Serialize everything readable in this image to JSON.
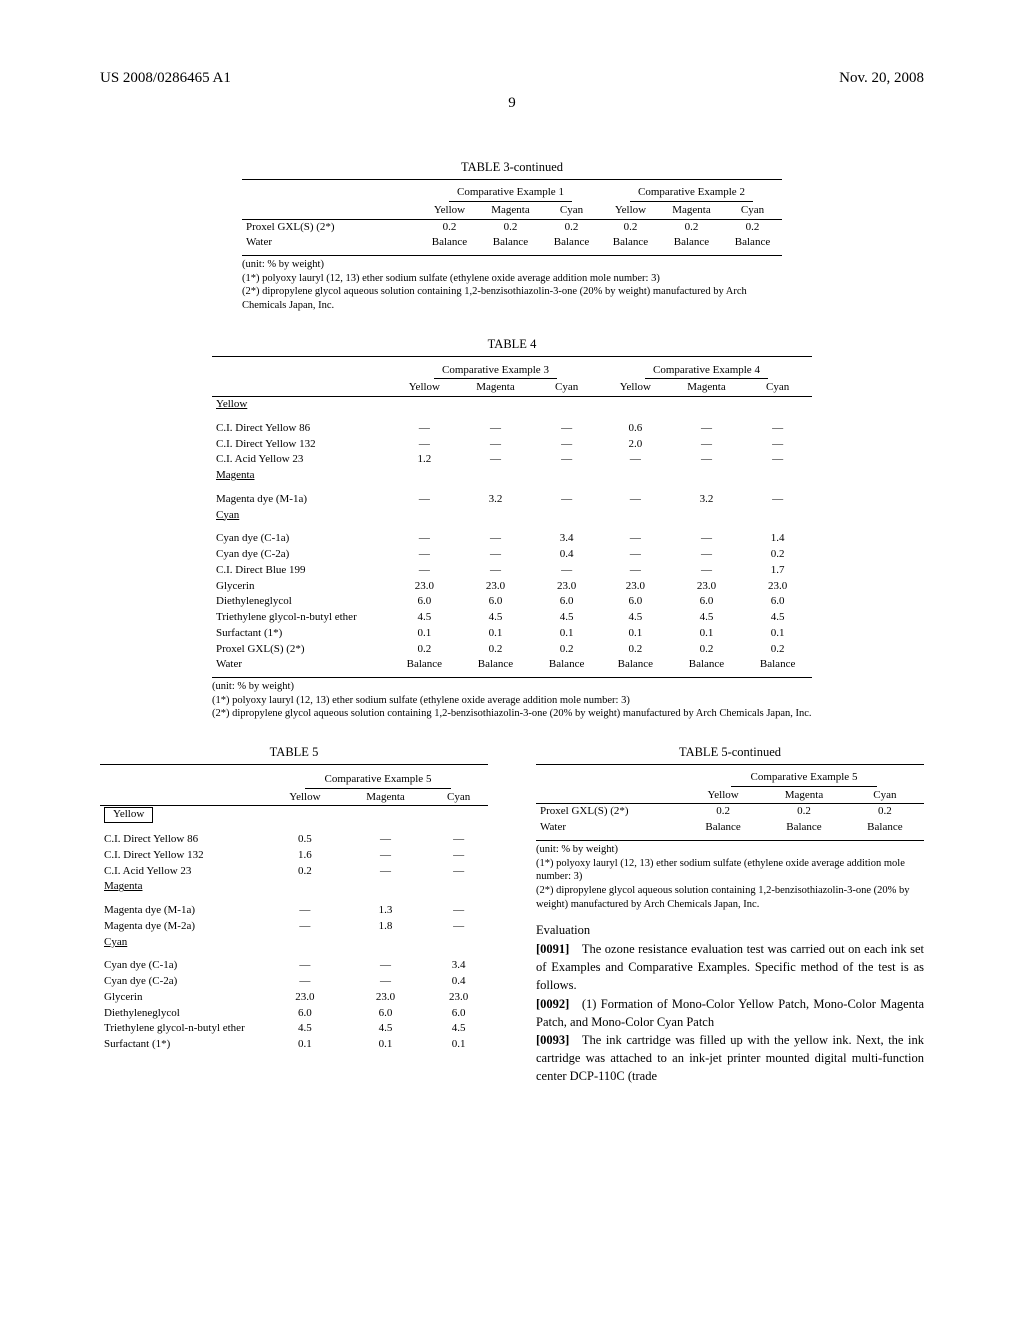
{
  "header": {
    "left": "US 2008/0286465 A1",
    "right": "Nov. 20, 2008",
    "page_number": "9"
  },
  "table3": {
    "title": "TABLE 3-continued",
    "group_headers": [
      "Comparative Example 1",
      "Comparative Example 2"
    ],
    "sub_headers": [
      "Yellow",
      "Magenta",
      "Cyan",
      "Yellow",
      "Magenta",
      "Cyan"
    ],
    "rows": [
      {
        "label": "Proxel GXL(S) (2*)",
        "vals": [
          "0.2",
          "0.2",
          "0.2",
          "0.2",
          "0.2",
          "0.2"
        ]
      },
      {
        "label": "Water",
        "vals": [
          "Balance",
          "Balance",
          "Balance",
          "Balance",
          "Balance",
          "Balance"
        ]
      }
    ],
    "footnotes": [
      "(unit: % by weight)",
      "(1*) polyoxy lauryl (12, 13) ether sodium sulfate (ethylene oxide average addition mole number: 3)",
      "(2*) dipropylene glycol aqueous solution containing 1,2-benzisothiazolin-3-one (20% by weight) manufactured by Arch Chemicals Japan, Inc."
    ],
    "label_col_width": "170px"
  },
  "table4": {
    "title": "TABLE 4",
    "group_headers": [
      "Comparative Example 3",
      "Comparative Example 4"
    ],
    "sub_headers": [
      "Yellow",
      "Magenta",
      "Cyan",
      "Yellow",
      "Magenta",
      "Cyan"
    ],
    "sections": [
      {
        "name": "Yellow",
        "rows": [
          {
            "label": "C.I. Direct Yellow 86",
            "vals": [
              "—",
              "—",
              "—",
              "0.6",
              "—",
              "—"
            ]
          },
          {
            "label": "C.I. Direct Yellow 132",
            "vals": [
              "—",
              "—",
              "—",
              "2.0",
              "—",
              "—"
            ]
          },
          {
            "label": "C.I. Acid Yellow 23",
            "vals": [
              "1.2",
              "—",
              "—",
              "—",
              "—",
              "—"
            ]
          }
        ]
      },
      {
        "name": "Magenta",
        "rows": [
          {
            "label": "Magenta dye (M-1a)",
            "vals": [
              "—",
              "3.2",
              "—",
              "—",
              "3.2",
              "—"
            ]
          }
        ]
      },
      {
        "name": "Cyan",
        "rows": [
          {
            "label": "Cyan dye (C-1a)",
            "vals": [
              "—",
              "—",
              "3.4",
              "—",
              "—",
              "1.4"
            ]
          },
          {
            "label": "Cyan dye (C-2a)",
            "vals": [
              "—",
              "—",
              "0.4",
              "—",
              "—",
              "0.2"
            ]
          },
          {
            "label": "C.I. Direct Blue 199",
            "vals": [
              "—",
              "—",
              "—",
              "—",
              "—",
              "1.7"
            ]
          },
          {
            "label": "Glycerin",
            "vals": [
              "23.0",
              "23.0",
              "23.0",
              "23.0",
              "23.0",
              "23.0"
            ]
          },
          {
            "label": "Diethyleneglycol",
            "vals": [
              "6.0",
              "6.0",
              "6.0",
              "6.0",
              "6.0",
              "6.0"
            ]
          },
          {
            "label": "Triethylene glycol-n-butyl ether",
            "vals": [
              "4.5",
              "4.5",
              "4.5",
              "4.5",
              "4.5",
              "4.5"
            ]
          },
          {
            "label": "Surfactant (1*)",
            "vals": [
              "0.1",
              "0.1",
              "0.1",
              "0.1",
              "0.1",
              "0.1"
            ]
          },
          {
            "label": "Proxel GXL(S) (2*)",
            "vals": [
              "0.2",
              "0.2",
              "0.2",
              "0.2",
              "0.2",
              "0.2"
            ]
          },
          {
            "label": "Water",
            "vals": [
              "Balance",
              "Balance",
              "Balance",
              "Balance",
              "Balance",
              "Balance"
            ]
          }
        ]
      }
    ],
    "footnotes": [
      "(unit: % by weight)",
      "(1*) polyoxy lauryl (12, 13) ether sodium sulfate (ethylene oxide average addition mole number: 3)",
      "(2*) dipropylene glycol aqueous solution containing 1,2-benzisothiazolin-3-one (20% by weight) manufactured by Arch Chemicals Japan, Inc."
    ],
    "label_col_width": "170px"
  },
  "table5_left": {
    "title": "TABLE 5",
    "group_header": "Comparative Example 5",
    "sub_headers": [
      "Yellow",
      "Magenta",
      "Cyan"
    ],
    "sections": [
      {
        "name": "Yellow",
        "boxed": true,
        "rows": [
          {
            "label": "C.I. Direct Yellow 86",
            "vals": [
              "0.5",
              "—",
              "—"
            ]
          },
          {
            "label": "C.I. Direct Yellow 132",
            "vals": [
              "1.6",
              "—",
              "—"
            ]
          },
          {
            "label": "C.I. Acid Yellow 23",
            "vals": [
              "0.2",
              "—",
              "—"
            ]
          }
        ]
      },
      {
        "name": "Magenta",
        "rows": [
          {
            "label": "Magenta dye (M-1a)",
            "vals": [
              "—",
              "1.3",
              "—"
            ]
          },
          {
            "label": "Magenta dye (M-2a)",
            "vals": [
              "—",
              "1.8",
              "—"
            ]
          }
        ]
      },
      {
        "name": "Cyan",
        "rows": [
          {
            "label": "Cyan dye (C-1a)",
            "vals": [
              "—",
              "—",
              "3.4"
            ]
          },
          {
            "label": "Cyan dye (C-2a)",
            "vals": [
              "—",
              "—",
              "0.4"
            ]
          },
          {
            "label": "Glycerin",
            "vals": [
              "23.0",
              "23.0",
              "23.0"
            ]
          },
          {
            "label": "Diethyleneglycol",
            "vals": [
              "6.0",
              "6.0",
              "6.0"
            ]
          },
          {
            "label": "Triethylene glycol-n-butyl ether",
            "vals": [
              "4.5",
              "4.5",
              "4.5"
            ]
          },
          {
            "label": "Surfactant (1*)",
            "vals": [
              "0.1",
              "0.1",
              "0.1"
            ]
          }
        ]
      }
    ],
    "label_col_width": "160px"
  },
  "table5_right": {
    "title": "TABLE 5-continued",
    "group_header": "Comparative Example 5",
    "sub_headers": [
      "Yellow",
      "Magenta",
      "Cyan"
    ],
    "rows": [
      {
        "label": "Proxel GXL(S) (2*)",
        "vals": [
          "0.2",
          "0.2",
          "0.2"
        ]
      },
      {
        "label": "Water",
        "vals": [
          "Balance",
          "Balance",
          "Balance"
        ]
      }
    ],
    "footnotes": [
      "(unit: % by weight)",
      "(1*) polyoxy lauryl (12, 13) ether sodium sulfate (ethylene oxide average addition mole number: 3)",
      "(2*) dipropylene glycol aqueous solution containing 1,2-benzisothiazolin-3-one (20% by weight) manufactured by Arch Chemicals Japan, Inc."
    ],
    "label_col_width": "140px"
  },
  "evaluation_heading": "Evaluation",
  "paragraphs": [
    {
      "num": "[0091]",
      "text": "The ozone resistance evaluation test was carried out on each ink set of Examples and Comparative Examples. Specific method of the test is as follows."
    },
    {
      "num": "[0092]",
      "text": "(1) Formation of Mono-Color Yellow Patch, Mono-Color Magenta Patch, and Mono-Color Cyan Patch"
    },
    {
      "num": "[0093]",
      "text": "The ink cartridge was filled up with the yellow ink. Next, the ink cartridge was attached to an ink-jet printer mounted digital multi-function center DCP-110C (trade"
    }
  ],
  "style": {
    "body_font_size_pt": 12.5,
    "table_font_size_pt": 11,
    "footnote_font_size_pt": 10.5,
    "background_color": "#ffffff",
    "text_color": "#000000",
    "rule_color": "#000000",
    "font_family": "Times New Roman"
  }
}
